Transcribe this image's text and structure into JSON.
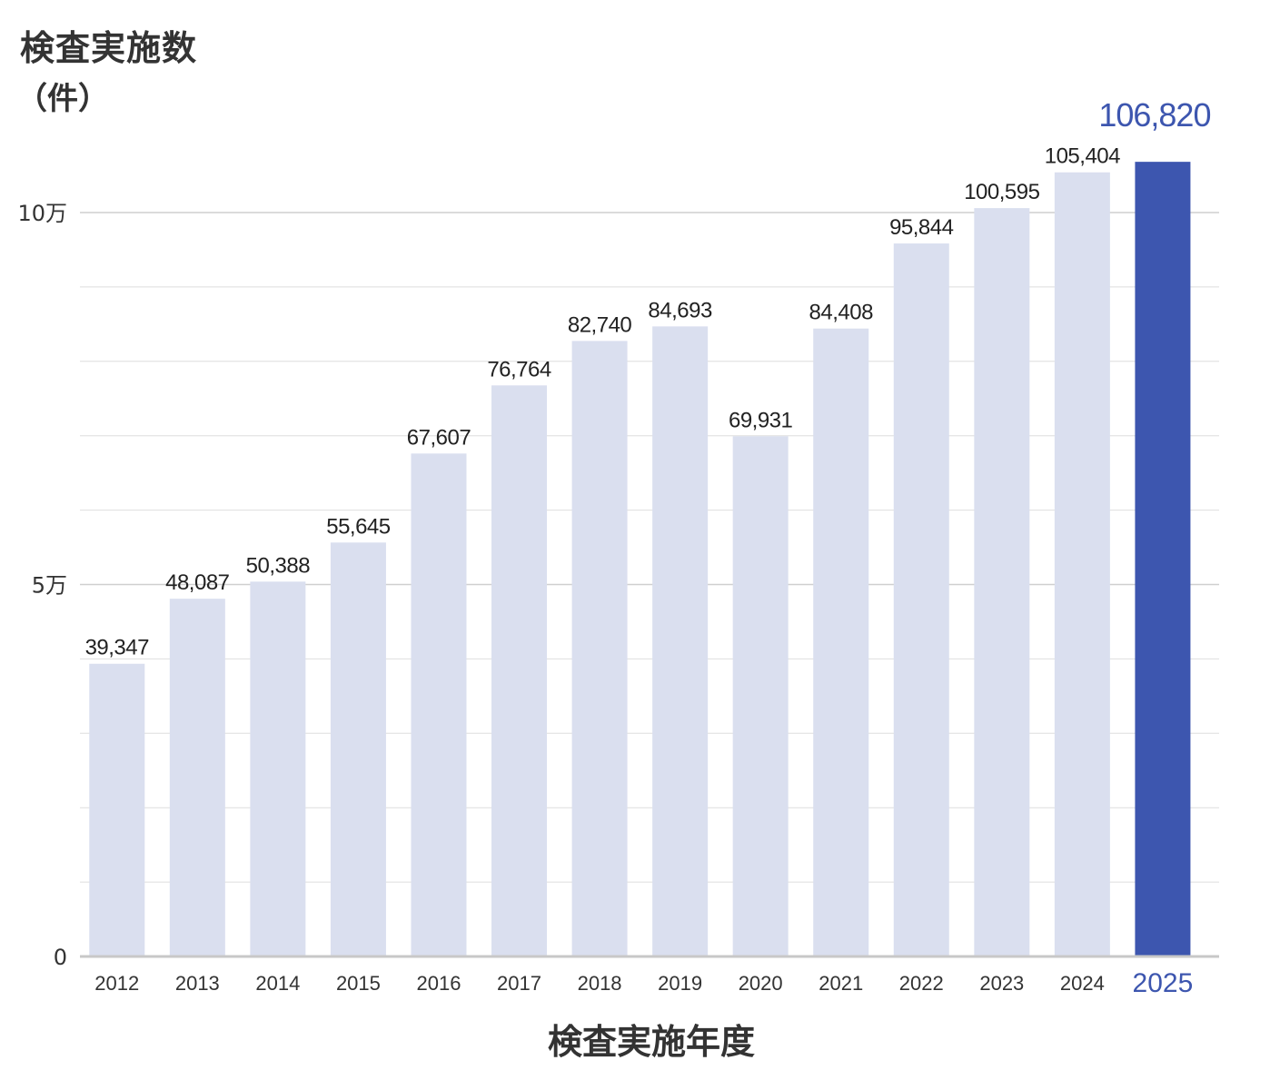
{
  "chart_data": {
    "type": "bar",
    "title": "検査実施数",
    "ylabel": "検査実施数",
    "yunit": "（件）",
    "xlabel": "検査実施年度",
    "categories": [
      "2012",
      "2013",
      "2014",
      "2015",
      "2016",
      "2017",
      "2018",
      "2019",
      "2020",
      "2021",
      "2022",
      "2023",
      "2024",
      "2025"
    ],
    "values": [
      39347,
      48087,
      50388,
      55645,
      67607,
      76764,
      82740,
      84693,
      69931,
      84408,
      95844,
      100595,
      105404,
      106820
    ],
    "value_labels": [
      "39,347",
      "48,087",
      "50,388",
      "55,645",
      "67,607",
      "76,764",
      "82,740",
      "84,693",
      "69,931",
      "84,408",
      "95,844",
      "100,595",
      "105,404",
      "106,820"
    ],
    "ylim": [
      0,
      110000
    ],
    "y_ticks": [
      {
        "value": 0,
        "label": "0"
      },
      {
        "value": 50000,
        "label": "5万"
      },
      {
        "value": 100000,
        "label": "10万"
      }
    ],
    "minor_gridlines": [
      10000,
      20000,
      30000,
      40000,
      60000,
      70000,
      80000,
      90000
    ],
    "highlight_category": "2025",
    "colors": {
      "bar": "#dadfef",
      "highlight": "#3d56af",
      "gridline": "#dedede",
      "major_gridline": "#cfcfcf",
      "baseline": "#c8c8c8",
      "text": "#333333",
      "label": "#222222"
    }
  }
}
